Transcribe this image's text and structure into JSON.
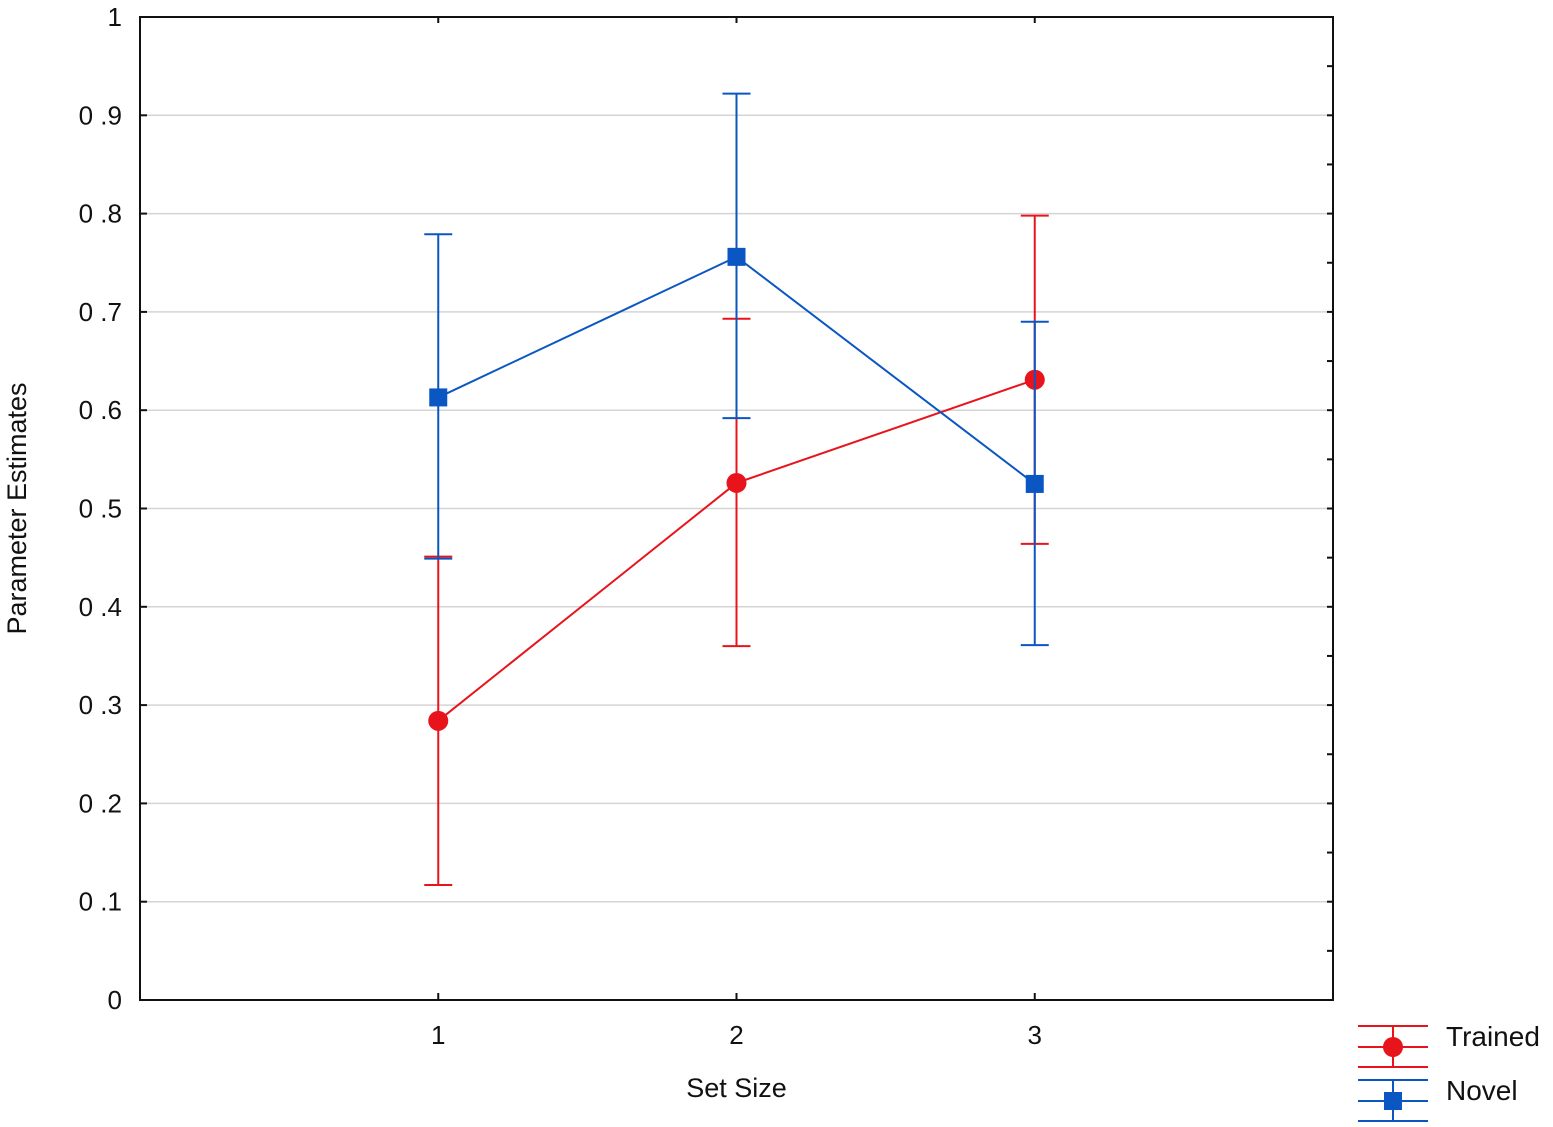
{
  "chart_data": {
    "type": "line",
    "xlabel": "Set Size",
    "ylabel": "Parameter Estimates",
    "categories": [
      "1",
      "2",
      "3"
    ],
    "ylim": [
      0,
      1
    ],
    "yticks": [
      "0",
      "0 .1",
      "0 .2",
      "0 .3",
      "0 .4",
      "0 .5",
      "0 .6",
      "0 .7",
      "0 .8",
      "0 .9",
      "1"
    ],
    "grid": "horizontal",
    "legend_position": "bottom-right",
    "series": [
      {
        "name": "Trained",
        "color": "#e8141c",
        "marker": "circle",
        "values": [
          0.284,
          0.526,
          0.631
        ],
        "err_low": [
          0.117,
          0.36,
          0.464
        ],
        "err_high": [
          0.451,
          0.693,
          0.798
        ]
      },
      {
        "name": "Novel",
        "color": "#0a56c2",
        "marker": "square",
        "values": [
          0.613,
          0.756,
          0.525
        ],
        "err_low": [
          0.449,
          0.592,
          0.361
        ],
        "err_high": [
          0.779,
          0.922,
          0.69
        ]
      }
    ]
  }
}
